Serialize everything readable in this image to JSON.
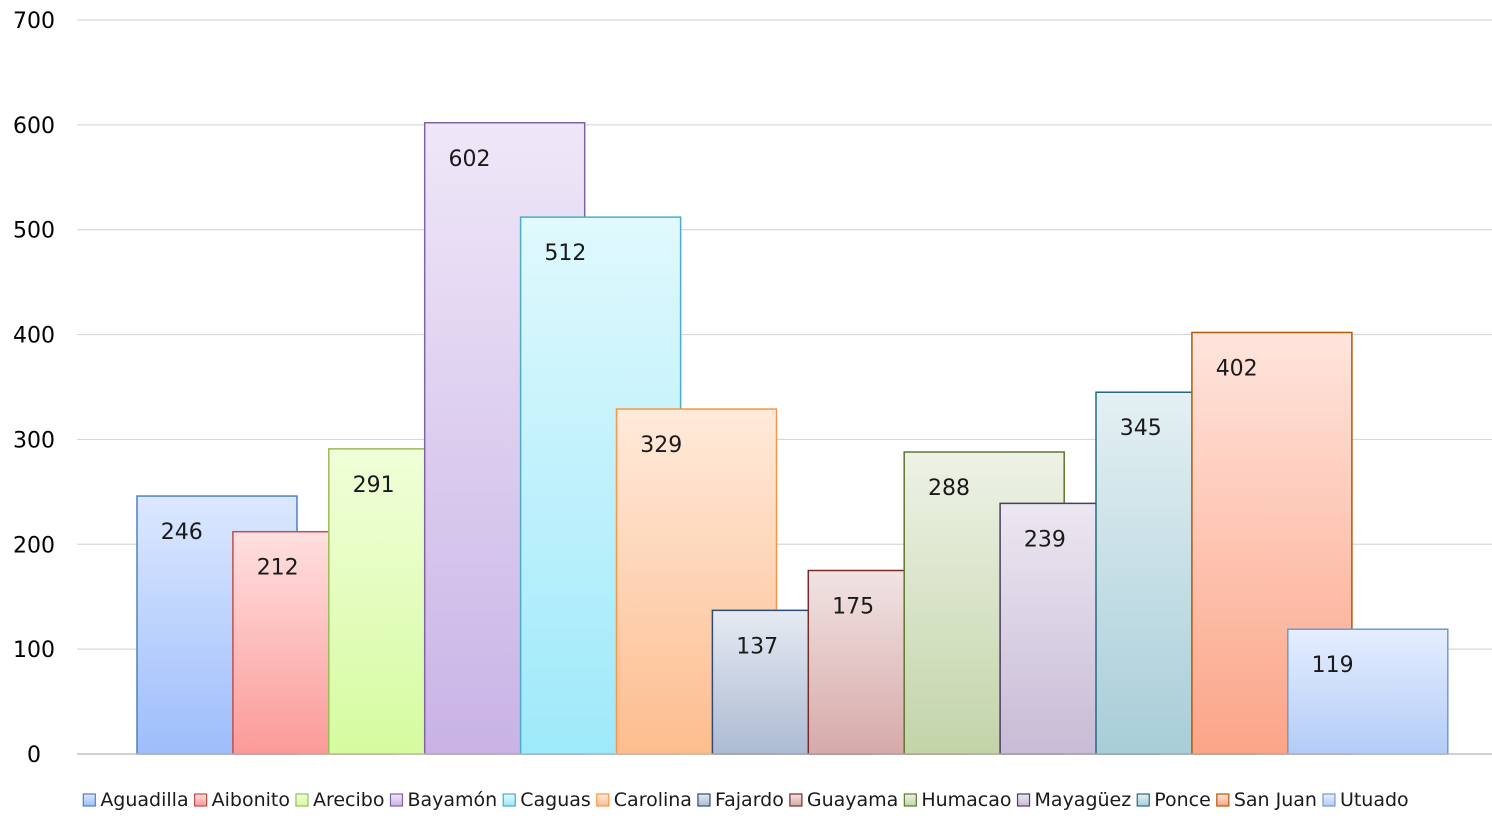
{
  "chart_data": {
    "type": "bar",
    "title": "",
    "xlabel": "",
    "ylabel": "",
    "ylim": [
      0,
      700
    ],
    "yticks": [
      0,
      100,
      200,
      300,
      400,
      500,
      600,
      700
    ],
    "grid": true,
    "legend_position": "bottom",
    "data_labels": true,
    "series": [
      {
        "name": "Aguadilla",
        "value": 246,
        "color_top": "#dce8ff",
        "color_bottom": "#9dbdfb",
        "stroke": "#4f81bd"
      },
      {
        "name": "Aibonito",
        "value": 212,
        "color_top": "#ffe0e0",
        "color_bottom": "#fb9a98",
        "stroke": "#c0504d"
      },
      {
        "name": "Arecibo",
        "value": 291,
        "color_top": "#f1ffd9",
        "color_bottom": "#d5fba0",
        "stroke": "#9bbb59"
      },
      {
        "name": "Bayamón",
        "value": 602,
        "color_top": "#efe7f8",
        "color_bottom": "#c9b3e6",
        "stroke": "#8064a2"
      },
      {
        "name": "Caguas",
        "value": 512,
        "color_top": "#e0f9fd",
        "color_bottom": "#9ee9fa",
        "stroke": "#4bacc6"
      },
      {
        "name": "Carolina",
        "value": 329,
        "color_top": "#ffeadb",
        "color_bottom": "#fdbd8e",
        "stroke": "#f79646"
      },
      {
        "name": "Fajardo",
        "value": 137,
        "color_top": "#e6eaf2",
        "color_bottom": "#adbbd3",
        "stroke": "#2c4d75"
      },
      {
        "name": "Guayama",
        "value": 175,
        "color_top": "#f1e3e3",
        "color_bottom": "#d6aaa9",
        "stroke": "#772c2a"
      },
      {
        "name": "Humacao",
        "value": 288,
        "color_top": "#edf2e6",
        "color_bottom": "#c3d4a9",
        "stroke": "#5f7530"
      },
      {
        "name": "Mayagüez",
        "value": 239,
        "color_top": "#ece7f1",
        "color_bottom": "#c8bbd6",
        "stroke": "#4d3b62"
      },
      {
        "name": "Ponce",
        "value": 345,
        "color_top": "#e4f0f3",
        "color_bottom": "#a8cdd8",
        "stroke": "#276a7c"
      },
      {
        "name": "San Juan",
        "value": 402,
        "color_top": "#ffe5dd",
        "color_bottom": "#fca487",
        "stroke": "#b65708"
      },
      {
        "name": "Utuado",
        "value": 119,
        "color_top": "#e5eeff",
        "color_bottom": "#b3ccf7",
        "stroke": "#729aca"
      }
    ]
  },
  "colors": {
    "gridline": "#d9d9d9",
    "axis": "#bfbfbf",
    "text": "#1a1a1a"
  }
}
